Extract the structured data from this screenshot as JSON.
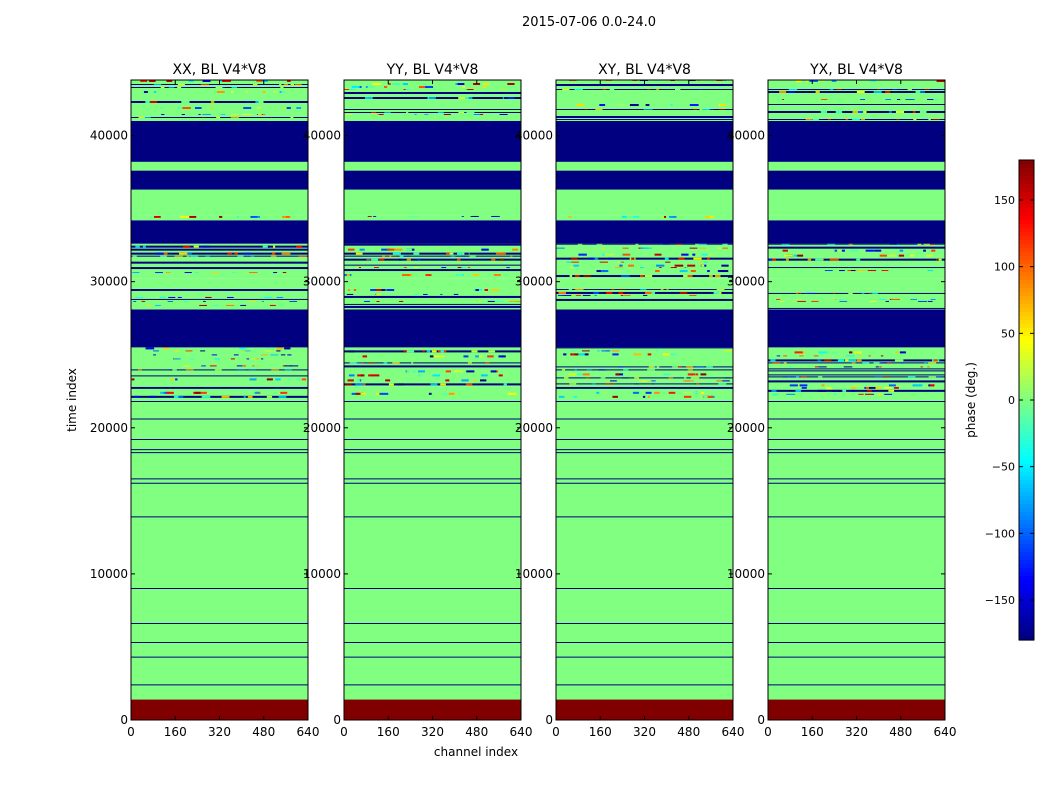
{
  "figure": {
    "title": "2015-07-06 0.0-24.0"
  },
  "chart_data": {
    "type": "heatmap",
    "xlabel": "channel index",
    "ylabel": "time index",
    "xlim": [
      0,
      640
    ],
    "ylim": [
      0,
      43800
    ],
    "xticks": [
      0,
      160,
      320,
      480,
      640
    ],
    "yticks": [
      0,
      10000,
      20000,
      30000,
      40000
    ],
    "panels": [
      {
        "title": "XX, BL V4*V8"
      },
      {
        "title": "YY, BL V4*V8"
      },
      {
        "title": "XY, BL V4*V8"
      },
      {
        "title": "YX, BL V4*V8"
      }
    ],
    "colorbar": {
      "label": "phase (deg.)",
      "range": [
        -180,
        180
      ],
      "ticks": [
        -150,
        -100,
        -50,
        0,
        50,
        100,
        150
      ],
      "tick_labels": [
        "−150",
        "−100",
        "−50",
        "0",
        "50",
        "100",
        "150"
      ],
      "colormap": "jet"
    },
    "bands": [
      {
        "t0": 0,
        "t1": 1400,
        "kind": "solid",
        "phase": 180
      },
      {
        "t0": 1400,
        "t1": 22000,
        "kind": "solid",
        "phase": 0
      },
      {
        "t0": 22000,
        "t1": 22800,
        "kind": "noise",
        "phase": 0
      },
      {
        "t0": 22800,
        "t1": 25500,
        "kind": "noise",
        "phase": 0
      },
      {
        "t0": 25500,
        "t1": 28100,
        "kind": "solid",
        "phase": -180
      },
      {
        "t0": 28100,
        "t1": 29500,
        "kind": "noise",
        "phase": 0
      },
      {
        "t0": 29500,
        "t1": 30200,
        "kind": "solid",
        "phase": 0
      },
      {
        "t0": 30200,
        "t1": 31000,
        "kind": "noise",
        "phase": 0
      },
      {
        "t0": 31000,
        "t1": 32600,
        "kind": "noise",
        "phase": 0
      },
      {
        "t0": 32600,
        "t1": 34200,
        "kind": "solid",
        "phase": -180
      },
      {
        "t0": 34200,
        "t1": 34500,
        "kind": "noise",
        "phase": 0
      },
      {
        "t0": 34500,
        "t1": 36300,
        "kind": "solid",
        "phase": 0
      },
      {
        "t0": 36300,
        "t1": 37600,
        "kind": "solid",
        "phase": -180
      },
      {
        "t0": 37600,
        "t1": 38200,
        "kind": "solid",
        "phase": 0
      },
      {
        "t0": 38200,
        "t1": 41000,
        "kind": "solid",
        "phase": -180
      },
      {
        "t0": 41000,
        "t1": 43800,
        "kind": "noise",
        "phase": 0
      }
    ],
    "lines": [
      2400,
      4300,
      5300,
      6600,
      9000,
      13900,
      16200,
      16500,
      18300,
      18500,
      19200,
      20600,
      21800
    ]
  }
}
